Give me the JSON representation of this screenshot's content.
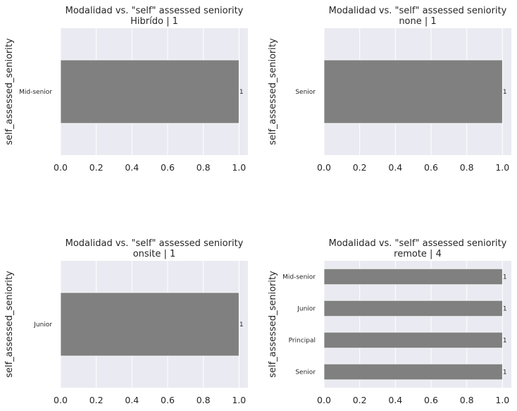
{
  "chart_data": [
    {
      "type": "bar",
      "orientation": "horizontal",
      "title": "Modalidad vs. \"self\" assessed seniority",
      "subtitle": "Hibrído | 1",
      "ylabel": "self_assessed_seniority",
      "xlim": [
        0,
        1.05
      ],
      "xticks": [
        "0.0",
        "0.2",
        "0.4",
        "0.6",
        "0.8",
        "1.0"
      ],
      "categories": [
        "Mid-senior"
      ],
      "values": [
        1
      ],
      "labels": [
        "1"
      ],
      "bar_color": "#808080",
      "background": "#eaeaf2",
      "grid": true
    },
    {
      "type": "bar",
      "orientation": "horizontal",
      "title": "Modalidad vs. \"self\" assessed seniority",
      "subtitle": "none | 1",
      "ylabel": "self_assessed_seniority",
      "xlim": [
        0,
        1.05
      ],
      "xticks": [
        "0.0",
        "0.2",
        "0.4",
        "0.6",
        "0.8",
        "1.0"
      ],
      "categories": [
        "Senior"
      ],
      "values": [
        1
      ],
      "labels": [
        "1"
      ],
      "bar_color": "#808080",
      "background": "#eaeaf2",
      "grid": true
    },
    {
      "type": "bar",
      "orientation": "horizontal",
      "title": "Modalidad vs. \"self\" assessed seniority",
      "subtitle": "onsite | 1",
      "ylabel": "self_assessed_seniority",
      "xlim": [
        0,
        1.05
      ],
      "xticks": [
        "0.0",
        "0.2",
        "0.4",
        "0.6",
        "0.8",
        "1.0"
      ],
      "categories": [
        "Junior"
      ],
      "values": [
        1
      ],
      "labels": [
        "1"
      ],
      "bar_color": "#808080",
      "background": "#eaeaf2",
      "grid": true
    },
    {
      "type": "bar",
      "orientation": "horizontal",
      "title": "Modalidad vs. \"self\" assessed seniority",
      "subtitle": "remote | 4",
      "ylabel": "self_assessed_seniority",
      "xlim": [
        0,
        1.05
      ],
      "xticks": [
        "0.0",
        "0.2",
        "0.4",
        "0.6",
        "0.8",
        "1.0"
      ],
      "categories": [
        "Mid-senior",
        "Junior",
        "Principal",
        "Senior"
      ],
      "values": [
        1,
        1,
        1,
        1
      ],
      "labels": [
        "1",
        "1",
        "1",
        "1"
      ],
      "bar_color": "#808080",
      "background": "#eaeaf2",
      "grid": true
    }
  ]
}
